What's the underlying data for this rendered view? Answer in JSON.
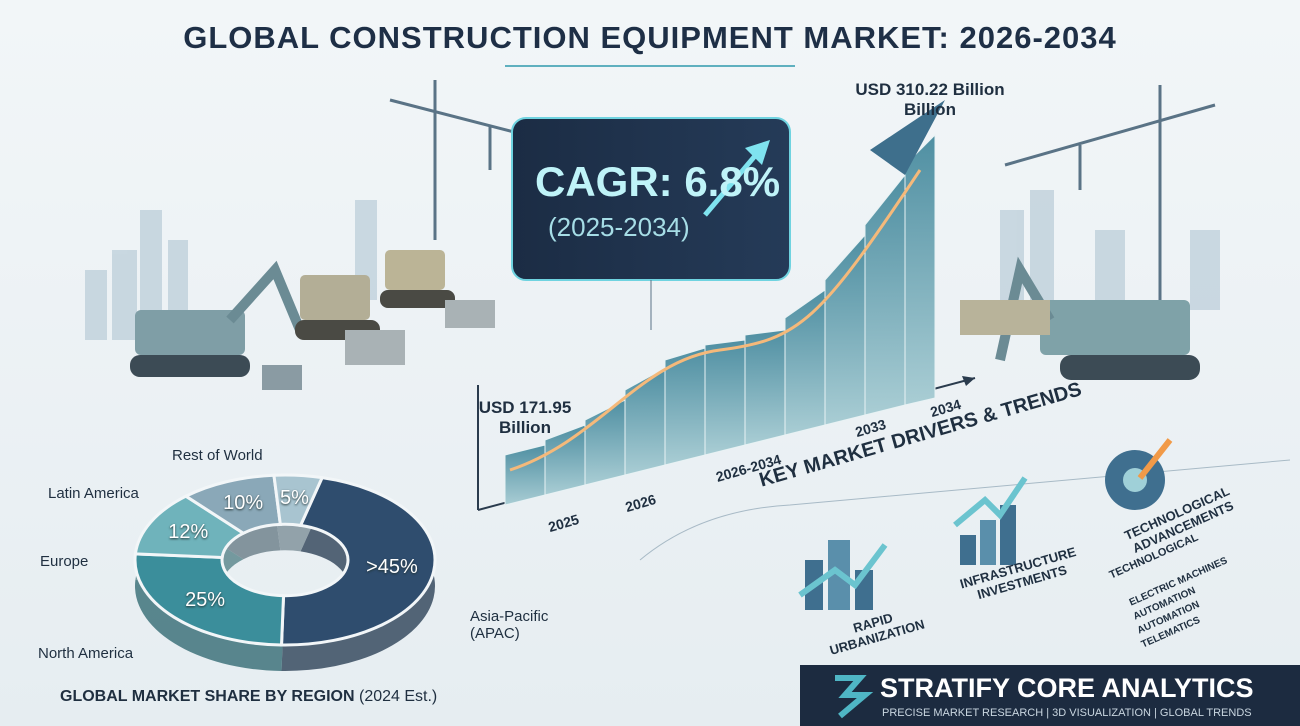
{
  "header": {
    "title": "GLOBAL CONSTRUCTION EQUIPMENT MARKET: 2026-2034"
  },
  "growth": {
    "cagr": "CAGR: 6.8%",
    "cagr_period": "(2025-2034)",
    "start_label": "USD 171.95 Billion",
    "end_label": "USD 310.22 Billion Billion",
    "axis_labels": [
      "2025",
      "2026",
      "2026-2034",
      "2033",
      "2034"
    ]
  },
  "drivers": {
    "title": "KEY MARKET DRIVERS & TRENDS",
    "items": [
      "RAPID URBANIZATION",
      "INFRASTRUCTURE INVESTMENTS",
      "TECHNOLOGICAL ADVANCEMENTS"
    ],
    "sub_title": "TECHNOLOGICAL",
    "bullets": [
      "ELECTRIC MACHINES",
      "AUTOMATION",
      "AUTOMATION",
      "TELEMATICS"
    ]
  },
  "chart_data": {
    "type": "pie",
    "title": "GLOBAL MARKET SHARE BY REGION",
    "subtitle": "(2024 Est.)",
    "categories": [
      "Asia-Pacific (APAC)",
      "North America",
      "Europe",
      "Latin America",
      "Rest of World"
    ],
    "values": [
      45,
      25,
      12,
      10,
      5
    ],
    "value_labels": [
      ">45%",
      "25%",
      "12%",
      "10%",
      "5%"
    ],
    "colors": [
      "#2f4d6e",
      "#3b8e9b",
      "#6fb3bb",
      "#8aa8b8",
      "#a8c4d0"
    ]
  },
  "brand": {
    "name": "STRATIFY CORE ANALYTICS",
    "tagline": "PRECISE MARKET RESEARCH | 3D VISUALIZATION | GLOBAL TRENDS"
  }
}
